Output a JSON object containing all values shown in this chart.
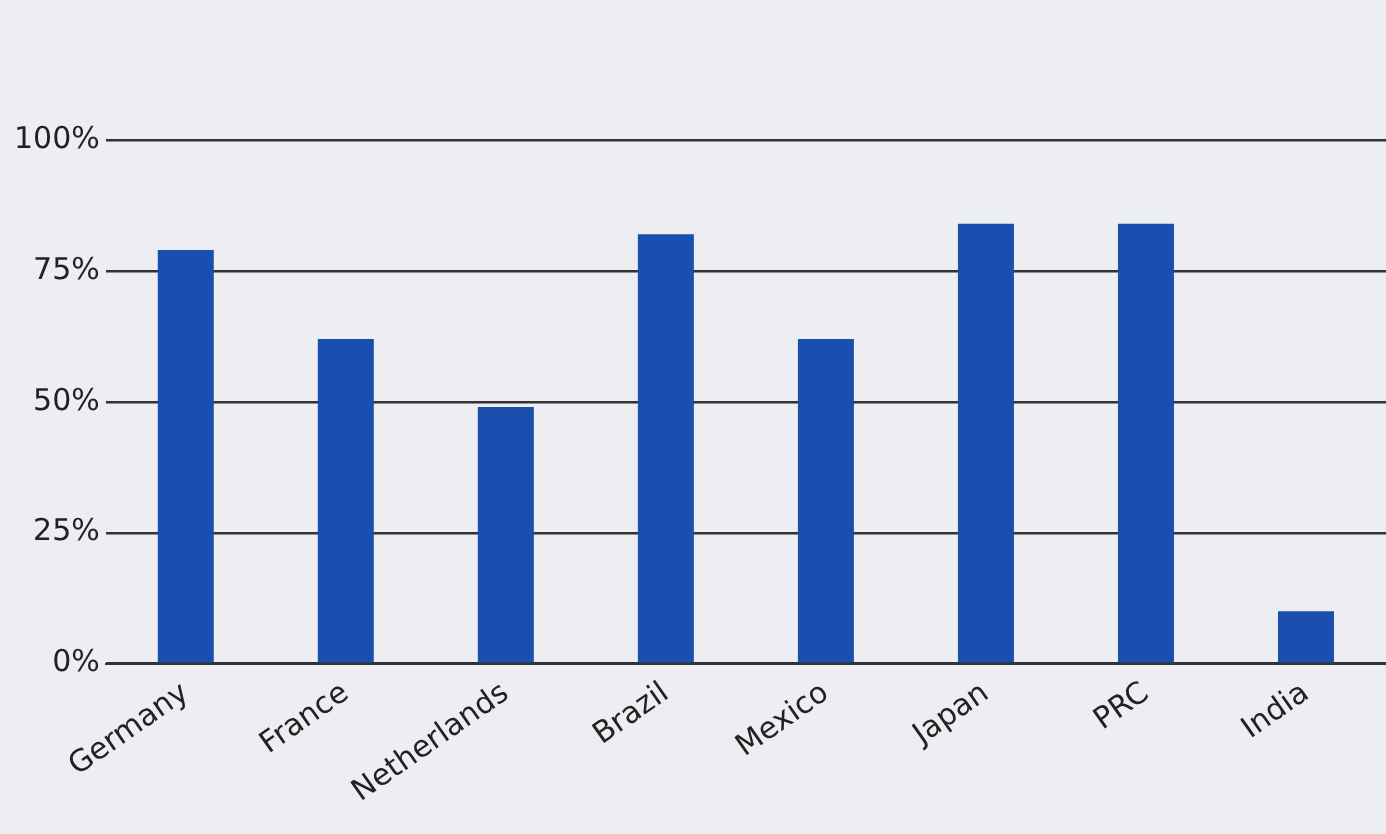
{
  "chart_data": {
    "type": "bar",
    "categories": [
      "Germany",
      "France",
      "Netherlands",
      "Brazil",
      "Mexico",
      "Japan",
      "PRC",
      "India"
    ],
    "values": [
      79,
      62,
      49,
      82,
      62,
      84,
      84,
      10
    ],
    "color": "#1a4fb0",
    "ylim": [
      0,
      100
    ],
    "yticks": [
      {
        "value": 0,
        "label": "0%"
      },
      {
        "value": 25,
        "label": "25%"
      },
      {
        "value": 50,
        "label": "50%"
      },
      {
        "value": 75,
        "label": "75%"
      },
      {
        "value": 100,
        "label": "100%"
      }
    ],
    "grid": "y"
  }
}
